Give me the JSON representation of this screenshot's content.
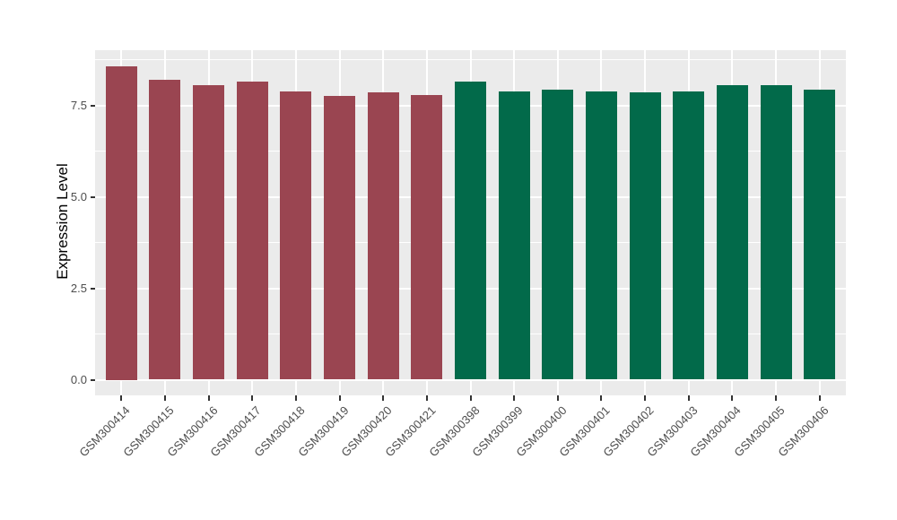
{
  "chart_data": {
    "type": "bar",
    "title": "",
    "xlabel": "",
    "ylabel": "Expression Level",
    "categories": [
      "GSM300414",
      "GSM300415",
      "GSM300416",
      "GSM300417",
      "GSM300418",
      "GSM300419",
      "GSM300420",
      "GSM300421",
      "GSM300398",
      "GSM300399",
      "GSM300400",
      "GSM300401",
      "GSM300402",
      "GSM300403",
      "GSM300404",
      "GSM300405",
      "GSM300406"
    ],
    "values": [
      8.58,
      8.2,
      8.05,
      8.14,
      7.89,
      7.77,
      7.85,
      7.78,
      8.15,
      7.89,
      7.93,
      7.89,
      7.85,
      7.88,
      8.05,
      8.06,
      7.94
    ],
    "bar_groups": [
      "group1",
      "group1",
      "group1",
      "group1",
      "group1",
      "group1",
      "group1",
      "group1",
      "group2",
      "group2",
      "group2",
      "group2",
      "group2",
      "group2",
      "group2",
      "group2",
      "group2"
    ],
    "group_colors": {
      "group1": "#9A4551",
      "group2": "#026A4A"
    },
    "yticks": [
      0,
      2.5,
      5,
      7.5
    ],
    "ytick_labels": [
      "0.0",
      "2.5",
      "5.0",
      "7.5"
    ],
    "yticks_minor": [
      1.25,
      3.75,
      6.25,
      8.75
    ],
    "ylim": [
      0,
      9.0
    ],
    "grid": true,
    "legend_position": "none",
    "panel_background": "#EBEBEB",
    "grid_color": "#FFFFFF",
    "axis_tick_color": "#333333",
    "axis_text_color": "#4D4D4D",
    "axis_title_color": "#000000"
  }
}
